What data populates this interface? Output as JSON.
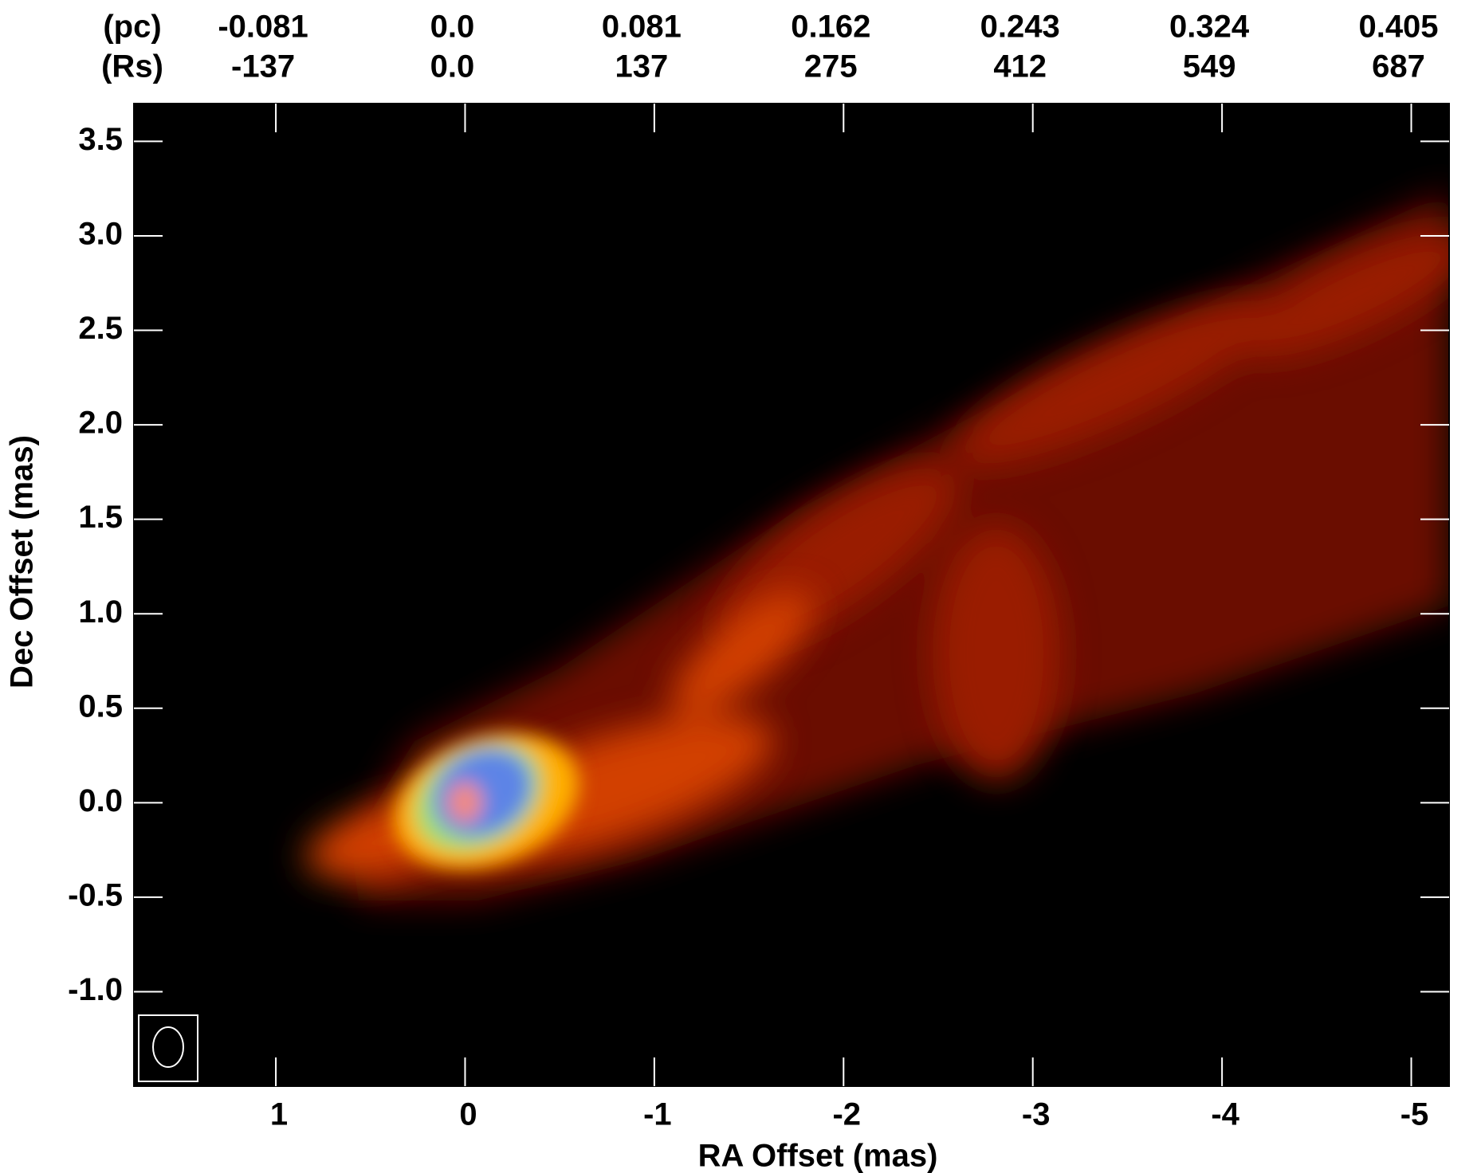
{
  "chart_data": {
    "type": "image",
    "xlabel": "RA Offset (mas)",
    "ylabel": "Dec Offset (mas)",
    "xlim": [
      1.75,
      -5.2
    ],
    "ylim": [
      -1.5,
      3.7
    ],
    "xticks": [
      1,
      0,
      -1,
      -2,
      -3,
      -4,
      -5
    ],
    "yticks": [
      3.5,
      {
        "value": 3,
        "label": "3.0"
      },
      2.5,
      {
        "value": 2,
        "label": "2.0"
      },
      1.5,
      {
        "value": 1,
        "label": "1.0"
      },
      0.5,
      {
        "value": 0,
        "label": "0.0"
      },
      -0.5,
      {
        "value": -1,
        "label": "-1.0"
      }
    ],
    "top_axes": [
      {
        "label": "(pc)",
        "ticks": [
          -0.081,
          {
            "value": 0,
            "label": "0.0"
          },
          0.081,
          0.162,
          0.243,
          0.324,
          0.405
        ]
      },
      {
        "label": "(Rs)",
        "ticks": [
          -137,
          {
            "value": 0,
            "label": "0.0"
          },
          137,
          275,
          412,
          549,
          687
        ]
      }
    ]
  }
}
